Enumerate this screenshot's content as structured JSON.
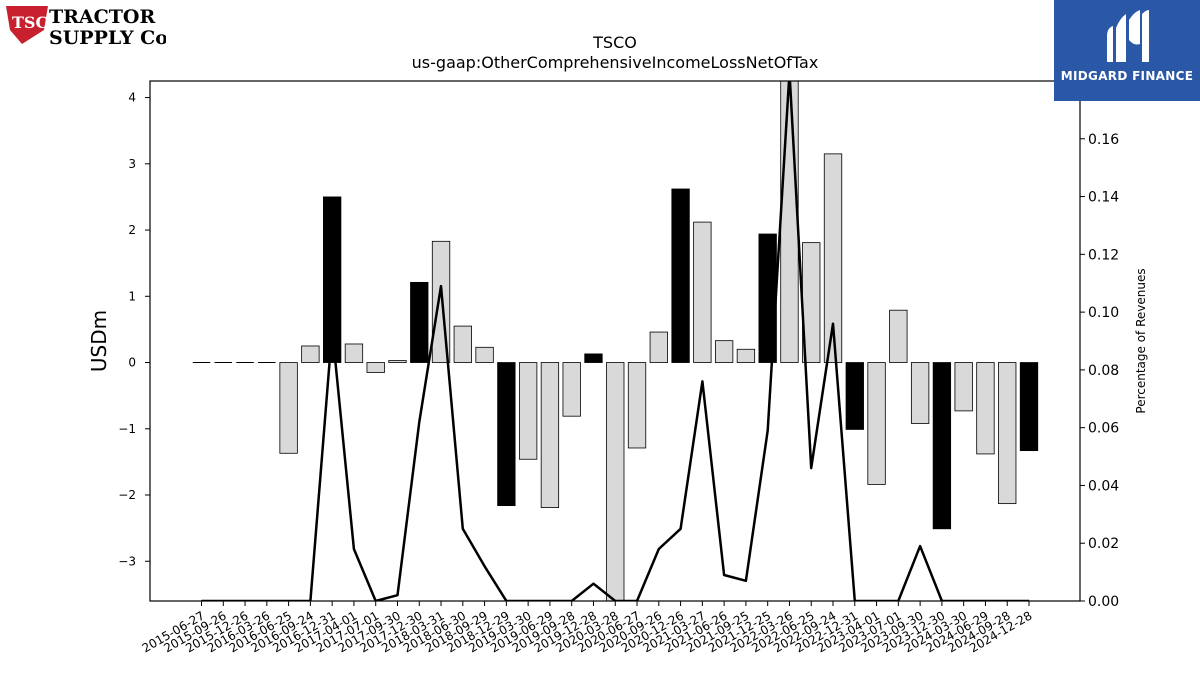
{
  "logos": {
    "left_brand": "TRACTOR SUPPLY Co",
    "left_brand_line1": "TRACTOR",
    "left_brand_line2": "SUPPLY Co",
    "left_badge": "TSC",
    "right_brand": "MIDGARD FINANCE",
    "right_brand_color": "#2b58a6"
  },
  "chart_data": {
    "type": "bar",
    "title": "TSCO",
    "subtitle": "us-gaap:OtherComprehensiveIncomeLossNetOfTax",
    "ylabel": "USDm",
    "y2label": "Percentage of Revenues",
    "ylim": [
      -3.6,
      4.25
    ],
    "y2lim": [
      0.0,
      0.18
    ],
    "yticks": [
      -3,
      -2,
      -1,
      0,
      1,
      2,
      3,
      4
    ],
    "y2ticks": [
      0.0,
      0.02,
      0.04,
      0.06,
      0.08,
      0.1,
      0.12,
      0.14,
      0.16
    ],
    "grid": false,
    "categories": [
      "2015-06-27",
      "2015-09-26",
      "2015-12-26",
      "2016-03-26",
      "2016-06-25",
      "2016-09-24",
      "2016-12-31",
      "2017-04-01",
      "2017-07-01",
      "2017-09-30",
      "2017-12-30",
      "2018-03-31",
      "2018-06-30",
      "2018-09-29",
      "2018-12-29",
      "2019-03-30",
      "2019-06-29",
      "2019-09-28",
      "2019-12-28",
      "2020-03-28",
      "2020-06-27",
      "2020-09-26",
      "2020-12-26",
      "2021-03-27",
      "2021-06-26",
      "2021-09-25",
      "2021-12-25",
      "2022-03-26",
      "2022-06-25",
      "2022-09-24",
      "2022-12-31",
      "2023-04-01",
      "2023-07-01",
      "2023-09-30",
      "2023-12-30",
      "2024-03-30",
      "2024-06-29",
      "2024-09-28",
      "2024-12-28"
    ],
    "series": [
      {
        "values": [
          0,
          0,
          0,
          0,
          -1.37,
          0.25,
          2.5,
          0.28,
          -0.15,
          0.03,
          1.21,
          1.83,
          0.55,
          0.23,
          -2.16,
          -1.46,
          -2.19,
          -0.81,
          0.13,
          -3.65,
          -1.29,
          0.46,
          2.62,
          2.12,
          0.33,
          0.2,
          1.94,
          4.3,
          1.81,
          3.15,
          -1.01,
          -1.84,
          0.79,
          -0.92,
          -2.51,
          -0.73,
          -1.38,
          -2.13,
          -1.33
        ],
        "bar_fill": [
          "#d9d9d9",
          "#d9d9d9",
          "#d9d9d9",
          "#d9d9d9",
          "#d9d9d9",
          "#d9d9d9",
          "#000000",
          "#d9d9d9",
          "#d9d9d9",
          "#d9d9d9",
          "#000000",
          "#d9d9d9",
          "#d9d9d9",
          "#d9d9d9",
          "#000000",
          "#d9d9d9",
          "#d9d9d9",
          "#d9d9d9",
          "#000000",
          "#d9d9d9",
          "#d9d9d9",
          "#d9d9d9",
          "#000000",
          "#d9d9d9",
          "#d9d9d9",
          "#d9d9d9",
          "#000000",
          "#d9d9d9",
          "#d9d9d9",
          "#d9d9d9",
          "#000000",
          "#d9d9d9",
          "#d9d9d9",
          "#d9d9d9",
          "#000000",
          "#d9d9d9",
          "#d9d9d9",
          "#d9d9d9",
          "#000000"
        ]
      },
      {
        "axis": "right",
        "values": [
          0.0,
          0.0,
          0.0,
          0.0,
          0.0,
          0.0,
          0.094,
          0.018,
          0.0,
          0.002,
          0.062,
          0.109,
          0.025,
          0.012,
          0.0,
          0.0,
          0.0,
          0.0,
          0.006,
          0.0,
          0.0,
          0.018,
          0.025,
          0.076,
          0.009,
          0.007,
          0.059,
          0.183,
          0.046,
          0.096,
          0.0,
          0.0,
          0.0,
          0.019,
          0.0,
          0.0,
          0.0,
          0.0,
          0.0
        ]
      }
    ]
  }
}
